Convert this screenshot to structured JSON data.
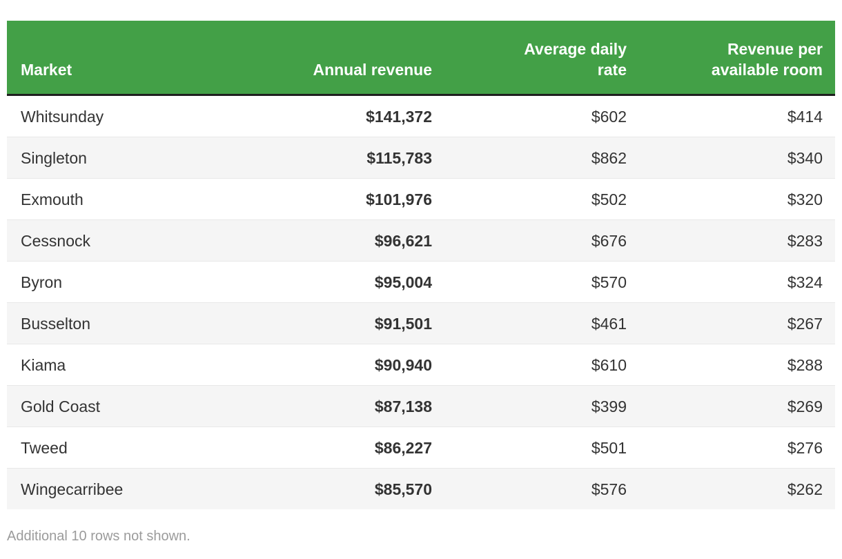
{
  "table": {
    "columns": [
      {
        "id": "market",
        "label": "Market",
        "align": "left"
      },
      {
        "id": "annual_revenue",
        "label": "Annual revenue",
        "align": "right"
      },
      {
        "id": "adr",
        "label": "Average daily rate",
        "align": "right"
      },
      {
        "id": "revpar",
        "label": "Revenue per available room",
        "align": "right"
      }
    ],
    "rows": [
      {
        "market": "Whitsunday",
        "annual_revenue": "$141,372",
        "adr": "$602",
        "revpar": "$414"
      },
      {
        "market": "Singleton",
        "annual_revenue": "$115,783",
        "adr": "$862",
        "revpar": "$340"
      },
      {
        "market": "Exmouth",
        "annual_revenue": "$101,976",
        "adr": "$502",
        "revpar": "$320"
      },
      {
        "market": "Cessnock",
        "annual_revenue": "$96,621",
        "adr": "$676",
        "revpar": "$283"
      },
      {
        "market": "Byron",
        "annual_revenue": "$95,004",
        "adr": "$570",
        "revpar": "$324"
      },
      {
        "market": "Busselton",
        "annual_revenue": "$91,501",
        "adr": "$461",
        "revpar": "$267"
      },
      {
        "market": "Kiama",
        "annual_revenue": "$90,940",
        "adr": "$610",
        "revpar": "$288"
      },
      {
        "market": "Gold Coast",
        "annual_revenue": "$87,138",
        "adr": "$399",
        "revpar": "$269"
      },
      {
        "market": "Tweed",
        "annual_revenue": "$86,227",
        "adr": "$501",
        "revpar": "$276"
      },
      {
        "market": "Wingecarribee",
        "annual_revenue": "$85,570",
        "adr": "$576",
        "revpar": "$262"
      }
    ],
    "footer_note": "Additional 10 rows not shown."
  },
  "chart_data": {
    "type": "table",
    "columns": [
      "Market",
      "Annual revenue",
      "Average daily rate",
      "Revenue per available room"
    ],
    "rows": [
      [
        "Whitsunday",
        141372,
        602,
        414
      ],
      [
        "Singleton",
        115783,
        862,
        340
      ],
      [
        "Exmouth",
        101976,
        502,
        320
      ],
      [
        "Cessnock",
        96621,
        676,
        283
      ],
      [
        "Byron",
        95004,
        570,
        324
      ],
      [
        "Busselton",
        91501,
        461,
        267
      ],
      [
        "Kiama",
        90940,
        610,
        288
      ],
      [
        "Gold Coast",
        87138,
        399,
        269
      ],
      [
        "Tweed",
        86227,
        501,
        276
      ],
      [
        "Wingecarribee",
        85570,
        576,
        262
      ]
    ],
    "note": "Additional 10 rows not shown.",
    "layout_hints": {
      "header_background": "green",
      "zebra_striping": true,
      "numeric_columns_right_aligned": true,
      "annual_revenue_bold": true
    }
  },
  "colors": {
    "header_bg": "#43a047",
    "header_text": "#ffffff",
    "header_border": "#1f1f1f",
    "row_stripe": "#f5f5f5",
    "row_border": "#e8e8e8",
    "body_text": "#333333",
    "muted_text": "#9b9b9b"
  }
}
